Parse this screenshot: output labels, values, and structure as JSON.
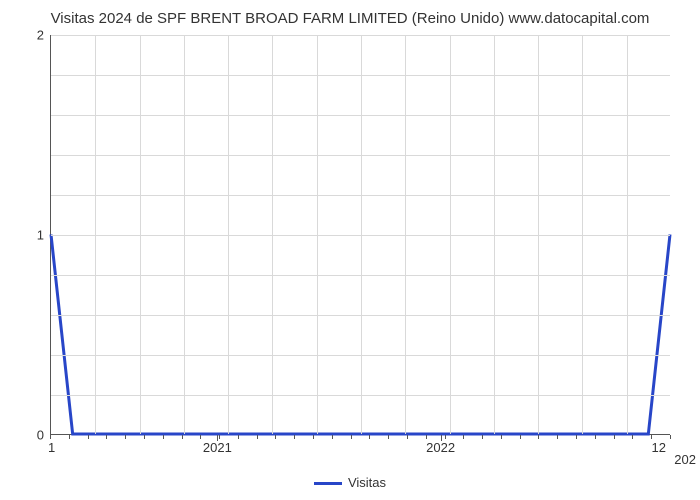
{
  "chart": {
    "type": "line",
    "title": "Visitas 2024 de SPF BRENT BROAD FARM LIMITED (Reino Unido) www.datocapital.com",
    "title_fontsize": 15,
    "background_color": "#ffffff",
    "grid_color": "#d9d9d9",
    "axis_color": "#555555",
    "series_color": "#2846c8",
    "line_width": 3,
    "ylim": [
      0,
      2
    ],
    "ytick_step": 1,
    "y_minor_per_major": 5,
    "x_major_labels": [
      "2021",
      "2022"
    ],
    "x_major_positions": [
      0.27,
      0.63
    ],
    "x_minor_count": 33,
    "left_edge_label": "1",
    "right_edge_label": "12",
    "right_end_label": "202",
    "legend_label": "Visitas",
    "data_points": [
      {
        "x": 0.0,
        "y": 1.0
      },
      {
        "x": 0.035,
        "y": 0.0
      },
      {
        "x": 0.965,
        "y": 0.0
      },
      {
        "x": 1.0,
        "y": 1.0
      }
    ]
  }
}
